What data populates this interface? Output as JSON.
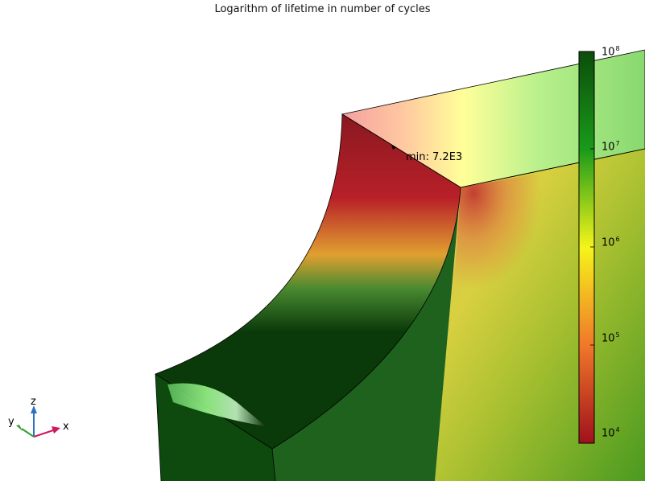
{
  "title": "Logarithm of lifetime in number of cycles",
  "annotation": {
    "label": "min: 7.2E3"
  },
  "colorbar": {
    "base": "10",
    "exponents": [
      "8",
      "7",
      "6",
      "5",
      "4"
    ],
    "colors": {
      "top": "#0b4d0b",
      "mid_green": "#1a9a1a",
      "yellow": "#f5f51a",
      "orange": "#f0782a",
      "bottom": "#a0101c"
    },
    "log_scale": true,
    "range": [
      10000.0,
      100000000.0
    ]
  },
  "axes_triad": {
    "x_label": "x",
    "y_label": "y",
    "z_label": "z",
    "x_color": "#d01860",
    "y_color": "#30a030",
    "z_color": "#3070c0"
  }
}
